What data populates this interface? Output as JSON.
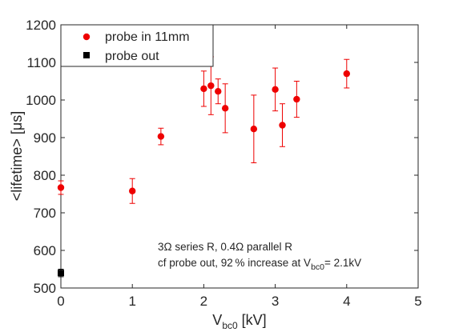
{
  "chart_data": {
    "type": "scatter",
    "xlabel": {
      "main": "V",
      "sub": "bc0",
      "unit": " [kV]"
    },
    "ylabel": "<lifetime> [μs]",
    "xlim": [
      0,
      5
    ],
    "ylim": [
      500,
      1200
    ],
    "xticks": [
      0,
      1,
      2,
      3,
      4,
      5
    ],
    "yticks": [
      500,
      600,
      700,
      800,
      900,
      1000,
      1100,
      1200
    ],
    "grid": false,
    "legend_position": "top-left",
    "series": [
      {
        "name": "probe in 11mm",
        "color": "#ee0000",
        "marker": "circle",
        "points": [
          {
            "x": 0.0,
            "y": 767,
            "err": 18
          },
          {
            "x": 1.0,
            "y": 758,
            "err": 33
          },
          {
            "x": 1.4,
            "y": 903,
            "err": 22
          },
          {
            "x": 2.0,
            "y": 1030,
            "err": 47
          },
          {
            "x": 2.1,
            "y": 1038,
            "err": 77
          },
          {
            "x": 2.2,
            "y": 1023,
            "err": 33
          },
          {
            "x": 2.3,
            "y": 978,
            "err": 65
          },
          {
            "x": 2.7,
            "y": 923,
            "err": 90
          },
          {
            "x": 3.0,
            "y": 1028,
            "err": 57
          },
          {
            "x": 3.1,
            "y": 933,
            "err": 57
          },
          {
            "x": 3.3,
            "y": 1002,
            "err": 48
          },
          {
            "x": 4.0,
            "y": 1070,
            "err": 38
          }
        ]
      },
      {
        "name": "probe out",
        "color": "#000000",
        "marker": "square",
        "points": [
          {
            "x": 0.0,
            "y": 540,
            "err": 10
          }
        ]
      }
    ],
    "annotation": {
      "line1": "3Ω series R, 0.4Ω parallel R",
      "line2_prefix": "cf probe out, 92 % increase at V",
      "line2_sub": "bc0",
      "line2_suffix": "= 2.1kV"
    }
  }
}
